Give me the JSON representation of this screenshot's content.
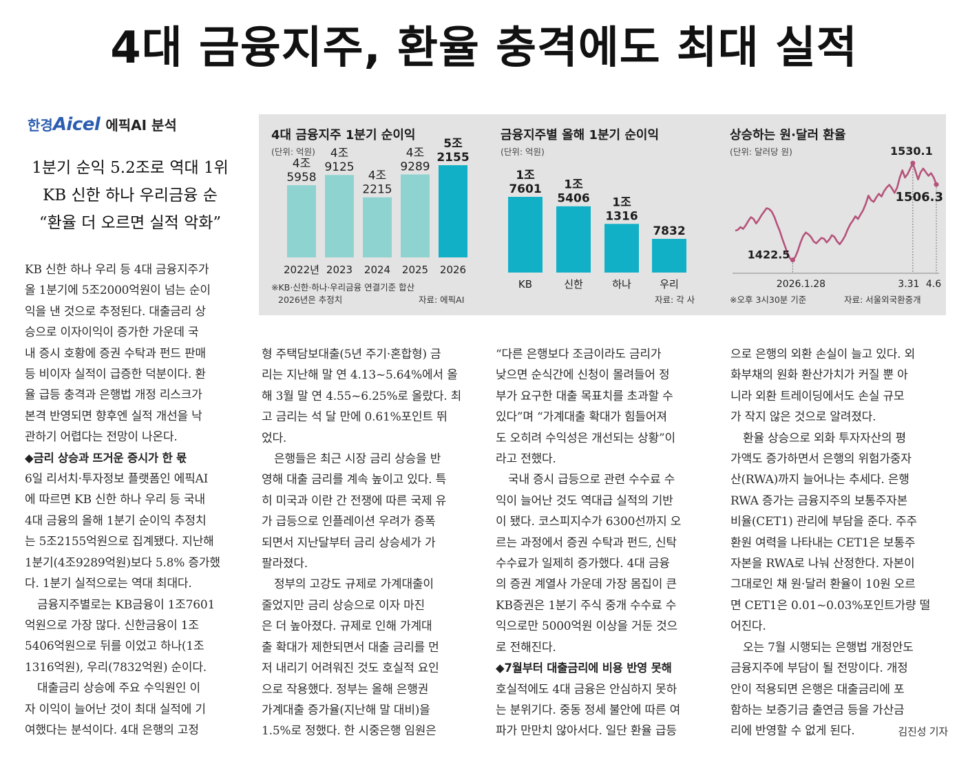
{
  "headline": "4대 금융지주, 환율 충격에도 최대 실적",
  "brand": {
    "name1": "한경",
    "name2": "Aicel",
    "name3": "에픽AI 분석"
  },
  "subheads": [
    "1분기 순익 5.2조로 역대 1위",
    "KB 신한 하나 우리금융 순",
    "“환율 더 오르면 실적 악화”"
  ],
  "columns": {
    "col1": {
      "lines": [
        "KB 신한 하나 우리 등 4대 금융지주가",
        "올 1분기에 5조2000억원이 넘는 순이",
        "익을 낸 것으로 추정된다. 대출금리 상",
        "승으로 이자이익이 증가한 가운데 국",
        "내 증시 호황에 증권 수탁과 펀드 판매",
        "등 비이자 실적이 급증한 덕분이다. 환",
        "율 급등 충격과 은행법 개정 리스크가",
        "본격 반영되면 향후엔 실적 개선을 낙",
        "관하기 어렵다는 전망이 나온다.",
        "◆금리 상승과 뜨거운 증시가 한 몫",
        "6일 리서치·투자정보 플랫폼인 에픽AI",
        "에 따르면 KB 신한 하나 우리 등 국내",
        "4대 금융의 올해 1분기 순이익 추정치",
        "는 5조2155억원으로 집계됐다. 지난해",
        "1분기(4조9289억원)보다 5.8% 증가했",
        "다. 1분기 실적으로는 역대 최대다.",
        "금융지주별로는 KB금융이 1조7601",
        "억원으로 가장 많다. 신한금융이 1조",
        "5406억원으로 뒤를 이었고 하나(1조",
        "1316억원), 우리(7832억원) 순이다.",
        "대출금리 상승에 주요 수익원인 이",
        "자 이익이 늘어난 것이 최대 실적에 기",
        "여했다는 분석이다. 4대 은행의 고정"
      ]
    },
    "col2": {
      "lines": [
        "형 주택담보대출(5년 주기·혼합형) 금",
        "리는 지난해 말 연 4.13~5.64%에서 올",
        "해 3월 말 연 4.55~6.25%로 올랐다. 최",
        "고 금리는 석 달 만에 0.61%포인트 뛰",
        "었다.",
        "은행들은 최근 시장 금리 상승을 반",
        "영해 대출 금리를 계속 높이고 있다. 특",
        "히 미국과 이란 간 전쟁에 따른 국제 유",
        "가 급등으로 인플레이션 우려가 증폭",
        "되면서 지난달부터 금리 상승세가 가",
        "팔라졌다.",
        "정부의 고강도 규제로 가계대출이",
        "줄었지만 금리 상승으로 이자 마진",
        "은 더 높아졌다. 규제로 인해 가계대",
        "출 확대가 제한되면서 대출 금리를 먼",
        "저 내리기 어려워진 것도 호실적 요인",
        "으로 작용했다. 정부는 올해 은행권",
        "가계대출 증가율(지난해 말 대비)을",
        "1.5%로 정했다. 한 시중은행 임원은"
      ]
    },
    "col3": {
      "lines": [
        "“다른 은행보다 조금이라도 금리가",
        "낮으면 순식간에 신청이 몰려들어 정",
        "부가 요구한 대출 목표치를 초과할 수",
        "있다”며 “가계대출 확대가 힘들어져",
        "도 오히려 수익성은 개선되는 상황”이",
        "라고 전했다.",
        "국내 증시 급등으로 관련 수수료 수",
        "익이 늘어난 것도 역대급 실적의 기반",
        "이 됐다. 코스피지수가 6300선까지 오",
        "르는 과정에서 증권 수탁과 펀드, 신탁",
        "수수료가 일제히 증가했다. 4대 금융",
        "의 증권 계열사 가운데 가장 몸집이 큰",
        "KB증권은 1분기 주식 중개 수수료 수",
        "익으로만 5000억원 이상을 거둔 것으",
        "로 전해진다.",
        "◆7월부터 대출금리에 비용 반영 못해",
        "호실적에도 4대 금융은 안심하지 못하",
        "는 분위기다. 중동 정세 불안에 따른 여",
        "파가 만만치 않아서다. 일단 환율 급등"
      ]
    },
    "col4": {
      "lines": [
        "으로 은행의 외환 손실이 늘고 있다. 외",
        "화부채의 원화 환산가치가 커질 뿐 아",
        "니라 외환 트레이딩에서도 손실 규모",
        "가 작지 않은 것으로 알려졌다.",
        "환율 상승으로 외화 투자자산의 평",
        "가액도 증가하면서 은행의 위험가중자",
        "산(RWA)까지 늘어나는 추세다. 은행",
        "RWA 증가는 금융지주의 보통주자본",
        "비율(CET1) 관리에 부담을 준다. 주주",
        "환원 여력을 나타내는 CET1은 보통주",
        "자본을 RWA로 나눠 산정한다. 자본이",
        "그대로인 채 원·달러 환율이 10원 오르",
        "면 CET1은 0.01~0.03%포인트가량 떨",
        "어진다.",
        "오는 7월 시행되는 은행법 개정안도",
        "금융지주에 부담이 될 전망이다. 개정",
        "안이 적용되면 은행은 대출금리에 포",
        "함하는 보증기금 출연금 등을 가산금",
        "리에 반영할 수 없게 된다."
      ],
      "byline": "김진성 기자"
    }
  },
  "charts": {
    "chart1": {
      "title": "4대 금융지주 1분기 순이익",
      "unit": "(단위: 억원)",
      "note1": "※KB·신한·하나·우리금융 연결기준 합산",
      "note2": "2026년은 추정치",
      "source": "자료: 에픽AI"
    },
    "chart2": {
      "title": "금융지주별 올해 1분기 순이익",
      "unit": "(단위: 억원)",
      "source": "자료: 각 사"
    },
    "chart3": {
      "title": "상승하는 원·달러 환율",
      "unit": "(단위: 달러당 원)",
      "note": "※오후 3시30분 기준",
      "source": "자료: 서울외국환중개"
    }
  },
  "chart_data": [
    {
      "type": "bar",
      "title": "4대 금융지주 1분기 순이익",
      "ylabel": "(단위: 억원)",
      "categories": [
        "2022년",
        "2023",
        "2024",
        "2025",
        "2026"
      ],
      "values": [
        45958,
        49125,
        42215,
        49289,
        52155
      ],
      "value_labels": [
        [
          "4조",
          "5958"
        ],
        [
          "4조",
          "9125"
        ],
        [
          "4조",
          "2215"
        ],
        [
          "4조",
          "9289"
        ],
        [
          "5조",
          "2155"
        ]
      ],
      "colors": [
        "#8fd3d1",
        "#8fd3d1",
        "#8fd3d1",
        "#8fd3d1",
        "#12b0c6"
      ],
      "highlight_index": 4
    },
    {
      "type": "bar",
      "title": "금융지주별 올해 1분기 순이익",
      "ylabel": "(단위: 억원)",
      "categories": [
        "KB",
        "신한",
        "하나",
        "우리"
      ],
      "values": [
        17601,
        15406,
        11316,
        7832
      ],
      "value_labels": [
        [
          "1조",
          "7601"
        ],
        [
          "1조",
          "5406"
        ],
        [
          "1조",
          "1316"
        ],
        [
          "",
          "7832"
        ]
      ],
      "color": "#12b0c6"
    },
    {
      "type": "line",
      "title": "상승하는 원·달러 환율",
      "ylabel": "(단위: 달러당 원)",
      "x_tick_labels": [
        "2026.1.28",
        "3.31",
        "4.6"
      ],
      "annotations": [
        {
          "x": "2026.1.28",
          "y": 1422.5,
          "label": "1422.5"
        },
        {
          "x": "3.31",
          "y": 1530.1,
          "label": "1530.1"
        },
        {
          "x": "4.6",
          "y": 1506.3,
          "label": "1506.3"
        }
      ],
      "ylim": [
        1410,
        1540
      ],
      "color": "#b5527a",
      "values": [
        1455,
        1456,
        1459,
        1457,
        1461,
        1466,
        1470,
        1468,
        1463,
        1467,
        1472,
        1476,
        1480,
        1479,
        1476,
        1470,
        1462,
        1455,
        1446,
        1438,
        1430,
        1424,
        1422.5,
        1426,
        1433,
        1442,
        1449,
        1453,
        1451,
        1448,
        1443,
        1441,
        1444,
        1447,
        1446,
        1442,
        1445,
        1450,
        1448,
        1443,
        1440,
        1444,
        1449,
        1456,
        1462,
        1466,
        1471,
        1468,
        1473,
        1478,
        1485,
        1494,
        1489,
        1487,
        1492,
        1496,
        1493,
        1499,
        1503,
        1506,
        1502,
        1497,
        1503,
        1514,
        1522,
        1514,
        1518,
        1524,
        1530.1,
        1521,
        1512,
        1520,
        1524,
        1520,
        1516,
        1519,
        1514,
        1506.3
      ]
    }
  ]
}
